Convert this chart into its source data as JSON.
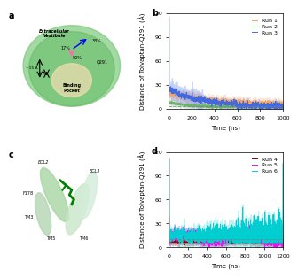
{
  "panel_b": {
    "title": "b",
    "xlabel": "Time (ns)",
    "ylabel": "Distance of Tolvaptan-Q291 (Å)",
    "xlim": [
      0,
      1000
    ],
    "ylim": [
      0,
      120
    ],
    "yticks": [
      0,
      30,
      60,
      90,
      120
    ],
    "xticks": [
      0,
      200,
      400,
      600,
      800,
      1000
    ],
    "dashed_lines": [
      3.5,
      7.0
    ],
    "runs": [
      {
        "label": "Run 1",
        "color": "#f4a460"
      },
      {
        "label": "Run 2",
        "color": "#6ab46a"
      },
      {
        "label": "Run 3",
        "color": "#4169e1"
      }
    ]
  },
  "panel_d": {
    "title": "d",
    "xlabel": "Time (ns)",
    "ylabel": "Distance of Tolvaptan-Q291 (Å)",
    "xlim": [
      0,
      1200
    ],
    "ylim": [
      0,
      120
    ],
    "yticks": [
      0,
      30,
      60,
      90,
      120
    ],
    "xticks": [
      0,
      200,
      400,
      600,
      800,
      1000,
      1200
    ],
    "dashed_lines": [
      5.0,
      10.0
    ],
    "runs": [
      {
        "label": "Run 4",
        "color": "#8b0000"
      },
      {
        "label": "Run 5",
        "color": "#ff00ff"
      },
      {
        "label": "Run 6",
        "color": "#00ced1"
      }
    ]
  },
  "panel_labels": {
    "a": "a",
    "b": "b",
    "c": "c",
    "d": "d"
  },
  "panel_label_fontsize": 7,
  "axis_fontsize": 5,
  "tick_fontsize": 4.5,
  "legend_fontsize": 4.5
}
